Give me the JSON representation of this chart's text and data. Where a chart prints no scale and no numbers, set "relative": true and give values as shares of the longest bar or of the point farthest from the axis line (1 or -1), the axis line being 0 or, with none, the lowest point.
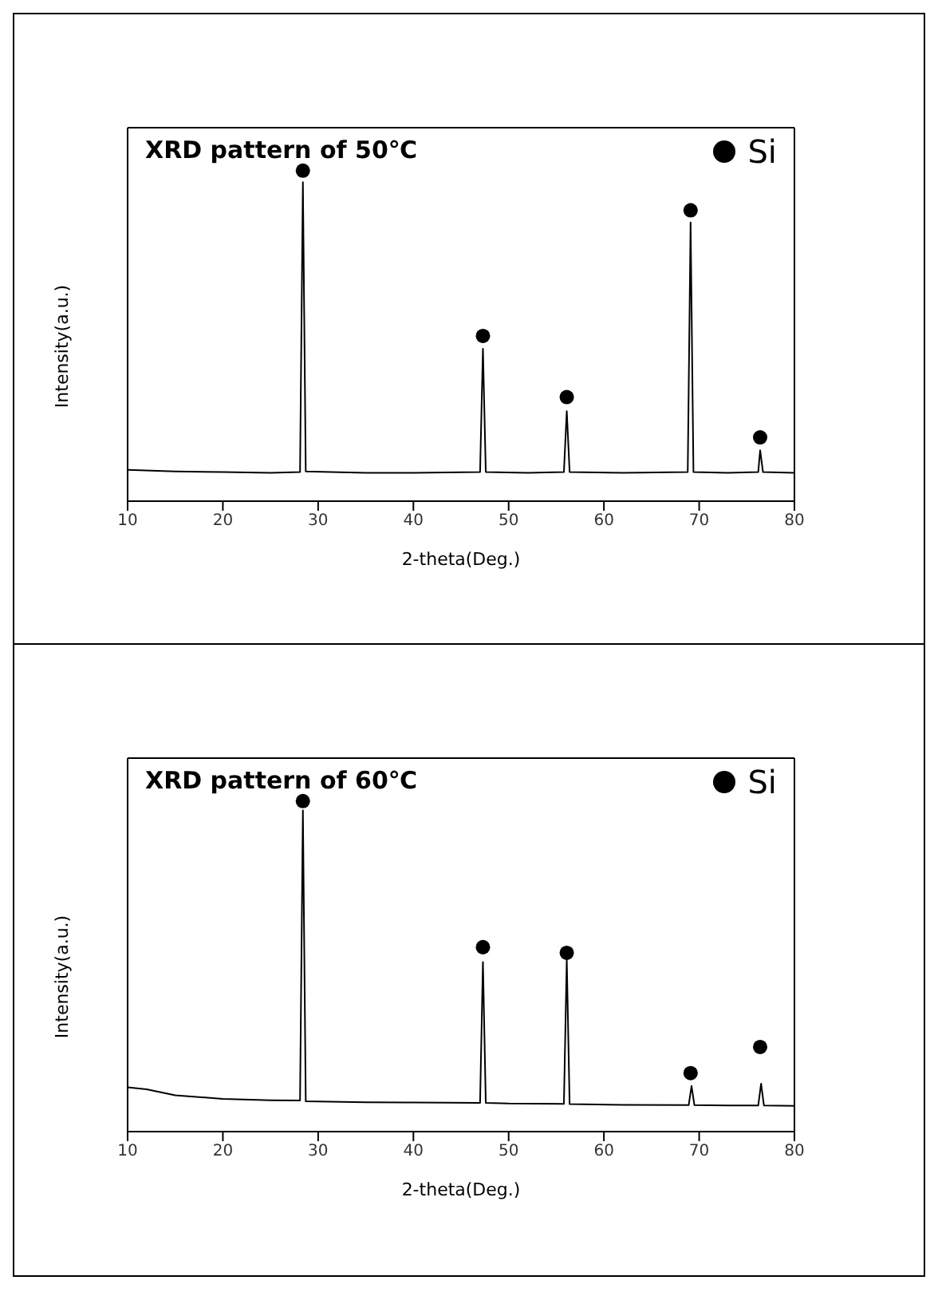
{
  "chart_data": [
    {
      "type": "line",
      "title": "XRD pattern of 50℃",
      "xlabel": "2-theta(Deg.)",
      "ylabel": "Intensity(a.u.)",
      "relative": true,
      "xlim": [
        10,
        80
      ],
      "xticks": [
        10,
        20,
        30,
        40,
        50,
        60,
        70,
        80
      ],
      "legend": "top right",
      "grid": false,
      "series": [
        {
          "color": "#000000",
          "marker": "none",
          "x": [
            10,
            15,
            20,
            25,
            28.1,
            28.4,
            28.7,
            35,
            40,
            47.0,
            47.3,
            47.6,
            52,
            55.8,
            56.1,
            56.4,
            62,
            68.8,
            69.1,
            69.4,
            73,
            76.2,
            76.4,
            76.7,
            80
          ],
          "values": [
            0.095,
            0.09,
            0.088,
            0.086,
            0.088,
            0.965,
            0.09,
            0.086,
            0.086,
            0.088,
            0.461,
            0.088,
            0.086,
            0.088,
            0.272,
            0.088,
            0.086,
            0.088,
            0.843,
            0.088,
            0.086,
            0.088,
            0.154,
            0.088,
            0.086
          ]
        },
        {
          "type": "scatter",
          "name": "Si",
          "color": "#000000",
          "marker": "circle",
          "x": [
            28.4,
            47.3,
            56.1,
            69.1,
            76.4
          ],
          "values": [
            1,
            0.5,
            0.315,
            0.88,
            0.193
          ]
        }
      ]
    },
    {
      "type": "line",
      "title": "XRD pattern of 60℃",
      "xlabel": "2-theta(Deg.)",
      "ylabel": "Intensity(a.u.)",
      "relative": true,
      "xlim": [
        10,
        80
      ],
      "xticks": [
        10,
        20,
        30,
        40,
        50,
        60,
        70,
        80
      ],
      "legend": "top right",
      "grid": false,
      "series": [
        {
          "color": "#000000",
          "marker": "none",
          "x": [
            10,
            12,
            15,
            20,
            25,
            28.1,
            28.4,
            28.7,
            35,
            40,
            47.0,
            47.3,
            47.6,
            50,
            55.8,
            56.1,
            56.4,
            62,
            68.9,
            69.2,
            69.5,
            73,
            76.2,
            76.5,
            76.8,
            80
          ],
          "values": [
            0.134,
            0.128,
            0.11,
            0.099,
            0.095,
            0.094,
            0.972,
            0.092,
            0.089,
            0.088,
            0.087,
            0.513,
            0.087,
            0.085,
            0.084,
            0.52,
            0.083,
            0.081,
            0.08,
            0.138,
            0.08,
            0.079,
            0.079,
            0.145,
            0.079,
            0.078
          ]
        },
        {
          "type": "scatter",
          "name": "Si",
          "color": "#000000",
          "marker": "circle",
          "x": [
            28.4,
            47.3,
            56.1,
            69.1,
            76.4
          ],
          "values": [
            1,
            0.558,
            0.541,
            0.177,
            0.256
          ]
        }
      ]
    }
  ]
}
